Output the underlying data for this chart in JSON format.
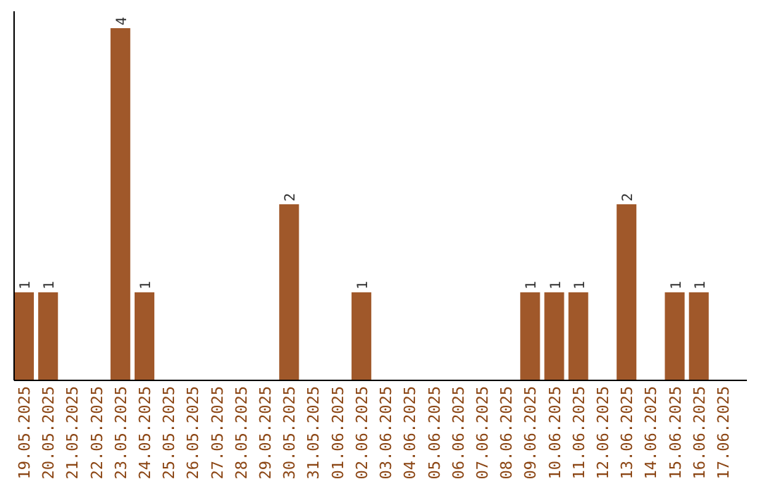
{
  "chart_data": {
    "type": "bar",
    "categories": [
      "19.05.2025",
      "20.05.2025",
      "21.05.2025",
      "22.05.2025",
      "23.05.2025",
      "24.05.2025",
      "25.05.2025",
      "26.05.2025",
      "27.05.2025",
      "28.05.2025",
      "29.05.2025",
      "30.05.2025",
      "31.05.2025",
      "01.06.2025",
      "02.06.2025",
      "03.06.2025",
      "04.06.2025",
      "05.06.2025",
      "06.06.2025",
      "07.06.2025",
      "08.06.2025",
      "09.06.2025",
      "10.06.2025",
      "11.06.2025",
      "12.06.2025",
      "13.06.2025",
      "14.06.2025",
      "15.06.2025",
      "16.06.2025",
      "17.06.2025"
    ],
    "values": [
      1,
      1,
      0,
      0,
      4,
      1,
      0,
      0,
      0,
      0,
      0,
      2,
      0,
      0,
      1,
      0,
      0,
      0,
      0,
      0,
      0,
      1,
      1,
      1,
      0,
      2,
      0,
      1,
      1,
      0
    ],
    "value_labels": [
      "1",
      "1",
      null,
      null,
      "4",
      "1",
      null,
      null,
      null,
      null,
      null,
      "2",
      null,
      null,
      "1",
      null,
      null,
      null,
      null,
      null,
      null,
      "1",
      "1",
      "1",
      null,
      "2",
      null,
      "1",
      "1",
      null
    ],
    "color": "#a0582a"
  }
}
